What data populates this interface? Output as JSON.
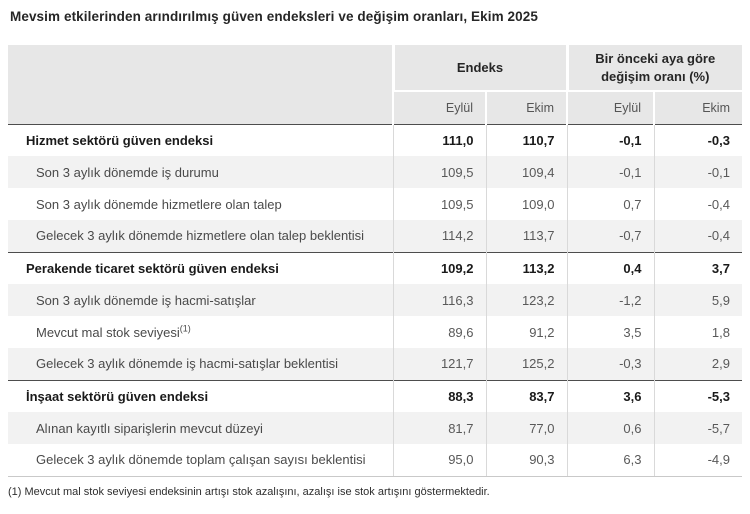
{
  "title": "Mevsim etkilerinden arındırılmış güven endeksleri ve değişim oranları, Ekim 2025",
  "table": {
    "group_headers": [
      {
        "label": "Endeks"
      },
      {
        "label": "Bir önceki aya göre değişim oranı (%)"
      }
    ],
    "sub_headers": [
      "Eylül",
      "Ekim",
      "Eylül",
      "Ekim"
    ],
    "rows": [
      {
        "label": "Hizmet sektörü güven endeksi",
        "bold": true,
        "values": [
          "111,0",
          "110,7",
          "-0,1",
          "-0,3"
        ]
      },
      {
        "label": "Son 3 aylık dönemde iş durumu",
        "bold": false,
        "values": [
          "109,5",
          "109,4",
          "-0,1",
          "-0,1"
        ]
      },
      {
        "label": "Son 3 aylık dönemde hizmetlere olan talep",
        "bold": false,
        "values": [
          "109,5",
          "109,0",
          "0,7",
          "-0,4"
        ]
      },
      {
        "label": "Gelecek 3 aylık dönemde hizmetlere olan talep beklentisi",
        "bold": false,
        "values": [
          "114,2",
          "113,7",
          "-0,7",
          "-0,4"
        ]
      },
      {
        "label": "Perakende ticaret sektörü güven endeksi",
        "bold": true,
        "values": [
          "109,2",
          "113,2",
          "0,4",
          "3,7"
        ]
      },
      {
        "label": "Son 3 aylık dönemde iş hacmi-satışlar",
        "bold": false,
        "values": [
          "116,3",
          "123,2",
          "-1,2",
          "5,9"
        ]
      },
      {
        "label": "Mevcut mal stok seviyesi",
        "label_sup": "(1)",
        "bold": false,
        "values": [
          "89,6",
          "91,2",
          "3,5",
          "1,8"
        ]
      },
      {
        "label": "Gelecek 3 aylık dönemde iş hacmi-satışlar beklentisi",
        "bold": false,
        "values": [
          "121,7",
          "125,2",
          "-0,3",
          "2,9"
        ]
      },
      {
        "label": "İnşaat sektörü güven endeksi",
        "bold": true,
        "values": [
          "88,3",
          "83,7",
          "3,6",
          "-5,3"
        ]
      },
      {
        "label": "Alınan kayıtlı siparişlerin mevcut düzeyi",
        "bold": false,
        "values": [
          "81,7",
          "77,0",
          "0,6",
          "-5,7"
        ]
      },
      {
        "label": "Gelecek 3 aylık dönemde toplam çalışan sayısı beklentisi",
        "bold": false,
        "values": [
          "95,0",
          "90,3",
          "6,3",
          "-4,9"
        ]
      }
    ]
  },
  "footnote": "(1) Mevcut mal stok seviyesi endeksinin artışı stok azalışını, azalışı ise stok artışını göstermektedir.",
  "colors": {
    "header_bg": "#e7e7e7",
    "alt_row_bg": "#f2f2f2",
    "section_border": "#4d4d4d",
    "cell_border": "#d9d9d9",
    "bold_text": "#1a1a1a",
    "regular_text": "#595959"
  }
}
